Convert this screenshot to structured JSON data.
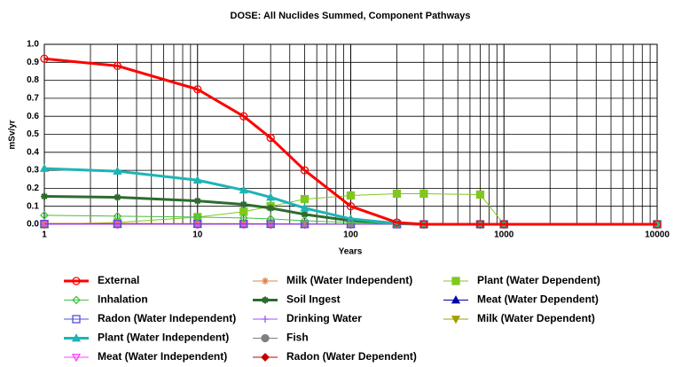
{
  "chart_data": {
    "type": "line",
    "title": "DOSE: All Nuclides Summed, Component Pathways",
    "x_label": "Years",
    "y_label": "mSv/yr",
    "x_scale": "log",
    "xlim": [
      1,
      10000
    ],
    "xticks": [
      1,
      10,
      100,
      1000,
      10000
    ],
    "xminor": [
      2,
      3,
      4,
      5,
      6,
      7,
      8,
      9,
      20,
      30,
      40,
      50,
      60,
      70,
      80,
      90,
      200,
      300,
      400,
      500,
      600,
      700,
      800,
      900,
      2000,
      3000,
      4000,
      5000,
      6000,
      7000,
      8000,
      9000
    ],
    "ylim": [
      0,
      1
    ],
    "yticks": [
      {
        "value": 0,
        "label": "0.0"
      },
      0.1,
      0.2,
      0.3,
      0.4,
      0.5,
      0.6,
      0.7,
      0.8,
      0.9,
      {
        "value": 1,
        "label": "1.0"
      }
    ],
    "grid": true,
    "x": [
      1,
      3,
      10,
      20,
      30,
      50,
      100,
      200,
      300,
      700,
      1000,
      10000
    ],
    "series": [
      {
        "name": "External",
        "color": "#ff0000",
        "marker": "circle",
        "filled": false,
        "width": 3,
        "values": [
          0.92,
          0.88,
          0.75,
          0.6,
          0.48,
          0.3,
          0.1,
          0.01,
          0,
          0,
          0,
          0
        ]
      },
      {
        "name": "Inhalation",
        "color": "#44c044",
        "marker": "diamond",
        "filled": false,
        "width": 1,
        "values": [
          0.05,
          0.045,
          0.04,
          0.035,
          0.03,
          0.02,
          0.01,
          0.002,
          0,
          0,
          0,
          0
        ]
      },
      {
        "name": "Radon (Water Independent)",
        "color": "#5050d8",
        "marker": "square",
        "filled": false,
        "width": 1,
        "values": [
          0.002,
          0.002,
          0.002,
          0.002,
          0.002,
          0.001,
          0.001,
          0,
          0,
          0,
          0,
          0
        ]
      },
      {
        "name": "Plant (Water Independent)",
        "color": "#1eb4b4",
        "marker": "triangle",
        "filled": true,
        "width": 3,
        "values": [
          0.31,
          0.295,
          0.245,
          0.19,
          0.15,
          0.09,
          0.03,
          0.005,
          0,
          0,
          0,
          0
        ]
      },
      {
        "name": "Meat (Water Independent)",
        "color": "#ff40ff",
        "marker": "triangle-down",
        "filled": false,
        "width": 1,
        "values": [
          0,
          0,
          0,
          0,
          0,
          0,
          0,
          0,
          0,
          0,
          0,
          0
        ]
      },
      {
        "name": "Milk (Water Independent)",
        "color": "#e08040",
        "marker": "asterisk",
        "filled": false,
        "width": 1,
        "values": [
          0.005,
          0.005,
          0.004,
          0.004,
          0.003,
          0.002,
          0.001,
          0,
          0,
          0,
          0,
          0
        ]
      },
      {
        "name": "Soil Ingest",
        "color": "#2e6b2e",
        "marker": "star",
        "filled": true,
        "width": 3,
        "values": [
          0.155,
          0.15,
          0.13,
          0.11,
          0.09,
          0.055,
          0.02,
          0.003,
          0,
          0,
          0,
          0
        ]
      },
      {
        "name": "Drinking Water",
        "color": "#a050ff",
        "marker": "plus",
        "filled": false,
        "width": 1,
        "values": [
          0,
          0,
          0,
          0,
          0,
          0,
          0,
          0,
          0,
          0,
          0,
          0
        ]
      },
      {
        "name": "Fish",
        "color": "#808080",
        "marker": "circle",
        "filled": true,
        "width": 1,
        "values": [
          0,
          0,
          0,
          0,
          0,
          0,
          0,
          0,
          0,
          0,
          0,
          0
        ]
      },
      {
        "name": "Radon (Water Dependent)",
        "color": "#c00000",
        "marker": "diamond",
        "filled": true,
        "width": 1,
        "values": [
          0,
          0,
          0,
          0,
          0,
          0,
          0,
          0,
          0,
          0,
          0,
          0
        ]
      },
      {
        "name": "Plant (Water Dependent)",
        "color": "#80c820",
        "marker": "square",
        "filled": true,
        "width": 1,
        "values": [
          0,
          0.01,
          0.04,
          0.07,
          0.1,
          0.14,
          0.16,
          0.17,
          0.17,
          0.165,
          0,
          0
        ]
      },
      {
        "name": "Meat (Water Dependent)",
        "color": "#0000a0",
        "marker": "triangle",
        "filled": true,
        "width": 1,
        "values": [
          0,
          0,
          0,
          0,
          0,
          0,
          0,
          0,
          0,
          0,
          0,
          0
        ]
      },
      {
        "name": "Milk (Water Dependent)",
        "color": "#a0a000",
        "marker": "triangle-down",
        "filled": true,
        "width": 1,
        "values": [
          0,
          0,
          0,
          0,
          0,
          0,
          0,
          0,
          0,
          0,
          0,
          0
        ]
      }
    ]
  }
}
